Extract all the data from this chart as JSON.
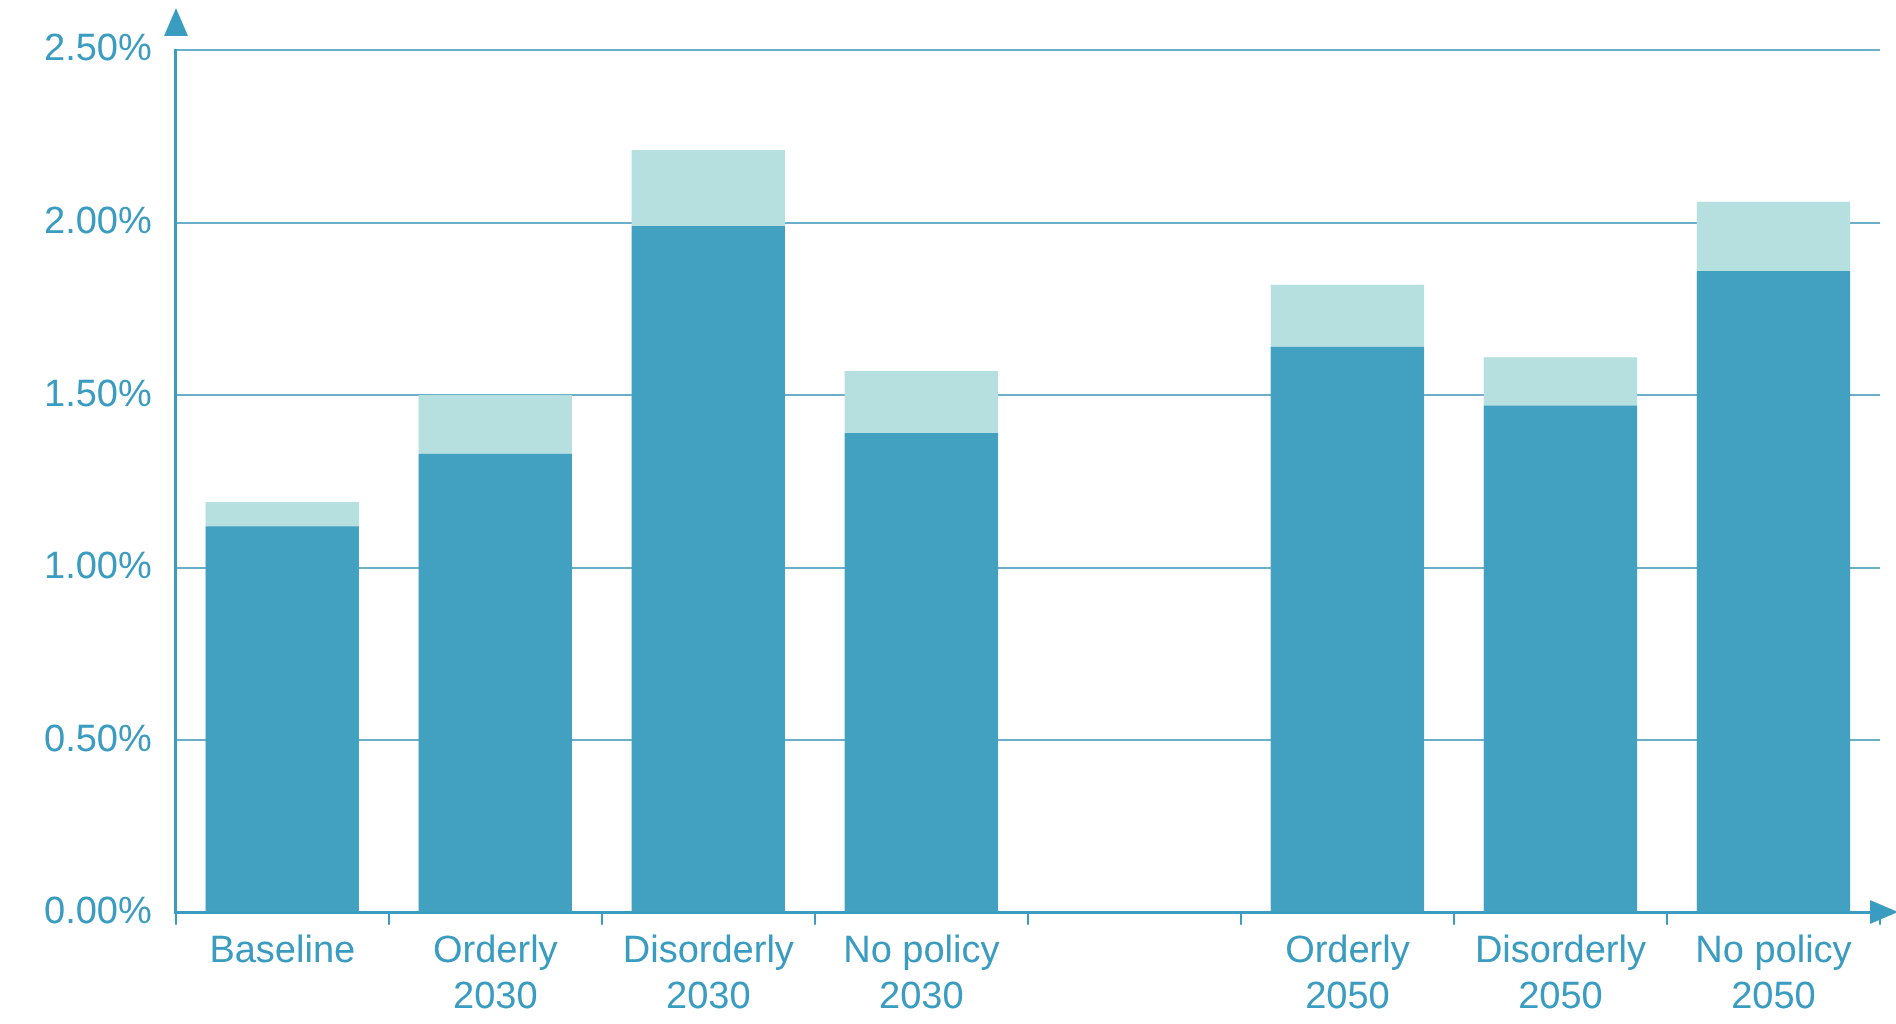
{
  "chart_data": {
    "type": "bar",
    "stacked": true,
    "categories": [
      "Baseline",
      "Orderly\n2030",
      "Disorderly\n2030",
      "No policy\n2030",
      null,
      "Orderly\n2050",
      "Disorderly\n2050",
      "No policy\n2050"
    ],
    "series": [
      {
        "color": "#42a1c1",
        "values": [
          1.12,
          1.33,
          1.99,
          1.39,
          null,
          1.64,
          1.47,
          1.86
        ]
      },
      {
        "color": "#b6dfdf",
        "values": [
          0.07,
          0.17,
          0.22,
          0.18,
          null,
          0.18,
          0.14,
          0.2
        ]
      }
    ],
    "ylim": [
      0,
      2.5
    ],
    "yticks": [
      {
        "value": 0,
        "label": "0.00%"
      },
      {
        "value": 0.5,
        "label": "0.50%"
      },
      {
        "value": 1,
        "label": "1.00%"
      },
      {
        "value": 1.5,
        "label": "1.50%"
      },
      {
        "value": 2,
        "label": "2.00%"
      },
      {
        "value": 2.5,
        "label": "2.50%"
      }
    ],
    "grid": "y",
    "legend": false
  }
}
